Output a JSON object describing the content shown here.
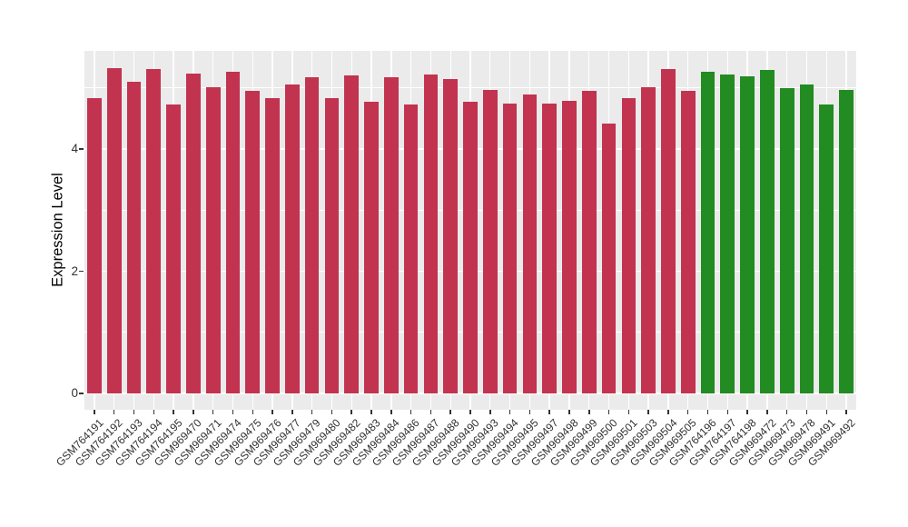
{
  "chart_data": {
    "type": "bar",
    "title": "",
    "xlabel": "",
    "ylabel": "Expression Level",
    "yticks": [
      0,
      2,
      4
    ],
    "minor_gridlines": [
      1,
      3,
      5
    ],
    "ylim": [
      0,
      5.6
    ],
    "legend_position": "none",
    "grid": true,
    "panel_background": "#EBEBEB",
    "gridline_color": "#FFFFFF",
    "axis_text_color": "#303030",
    "group_colors": {
      "group1": "#C23350",
      "group2": "#228B22"
    },
    "bars": [
      {
        "label": "GSM764191",
        "value": 4.83,
        "group": "group1"
      },
      {
        "label": "GSM764192",
        "value": 5.33,
        "group": "group1"
      },
      {
        "label": "GSM764193",
        "value": 5.1,
        "group": "group1"
      },
      {
        "label": "GSM764194",
        "value": 5.31,
        "group": "group1"
      },
      {
        "label": "GSM764195",
        "value": 4.73,
        "group": "group1"
      },
      {
        "label": "GSM969470",
        "value": 5.23,
        "group": "group1"
      },
      {
        "label": "GSM969471",
        "value": 5.01,
        "group": "group1"
      },
      {
        "label": "GSM969474",
        "value": 5.26,
        "group": "group1"
      },
      {
        "label": "GSM969475",
        "value": 4.95,
        "group": "group1"
      },
      {
        "label": "GSM969476",
        "value": 4.83,
        "group": "group1"
      },
      {
        "label": "GSM969477",
        "value": 5.05,
        "group": "group1"
      },
      {
        "label": "GSM969479",
        "value": 5.18,
        "group": "group1"
      },
      {
        "label": "GSM969480",
        "value": 4.84,
        "group": "group1"
      },
      {
        "label": "GSM969482",
        "value": 5.21,
        "group": "group1"
      },
      {
        "label": "GSM969483",
        "value": 4.77,
        "group": "group1"
      },
      {
        "label": "GSM969484",
        "value": 5.18,
        "group": "group1"
      },
      {
        "label": "GSM969486",
        "value": 4.73,
        "group": "group1"
      },
      {
        "label": "GSM969487",
        "value": 5.22,
        "group": "group1"
      },
      {
        "label": "GSM969488",
        "value": 5.15,
        "group": "group1"
      },
      {
        "label": "GSM969490",
        "value": 4.77,
        "group": "group1"
      },
      {
        "label": "GSM969493",
        "value": 4.97,
        "group": "group1"
      },
      {
        "label": "GSM969494",
        "value": 4.75,
        "group": "group1"
      },
      {
        "label": "GSM969495",
        "value": 4.89,
        "group": "group1"
      },
      {
        "label": "GSM969497",
        "value": 4.74,
        "group": "group1"
      },
      {
        "label": "GSM969498",
        "value": 4.79,
        "group": "group1"
      },
      {
        "label": "GSM969499",
        "value": 4.95,
        "group": "group1"
      },
      {
        "label": "GSM969500",
        "value": 4.42,
        "group": "group1"
      },
      {
        "label": "GSM969501",
        "value": 4.84,
        "group": "group1"
      },
      {
        "label": "GSM969503",
        "value": 5.01,
        "group": "group1"
      },
      {
        "label": "GSM969504",
        "value": 5.31,
        "group": "group1"
      },
      {
        "label": "GSM969505",
        "value": 4.95,
        "group": "group1"
      },
      {
        "label": "GSM764196",
        "value": 5.27,
        "group": "group2"
      },
      {
        "label": "GSM764197",
        "value": 5.22,
        "group": "group2"
      },
      {
        "label": "GSM764198",
        "value": 5.19,
        "group": "group2"
      },
      {
        "label": "GSM969472",
        "value": 5.3,
        "group": "group2"
      },
      {
        "label": "GSM969473",
        "value": 5.0,
        "group": "group2"
      },
      {
        "label": "GSM969478",
        "value": 5.06,
        "group": "group2"
      },
      {
        "label": "GSM969491",
        "value": 4.73,
        "group": "group2"
      },
      {
        "label": "GSM969492",
        "value": 4.96,
        "group": "group2"
      }
    ]
  }
}
